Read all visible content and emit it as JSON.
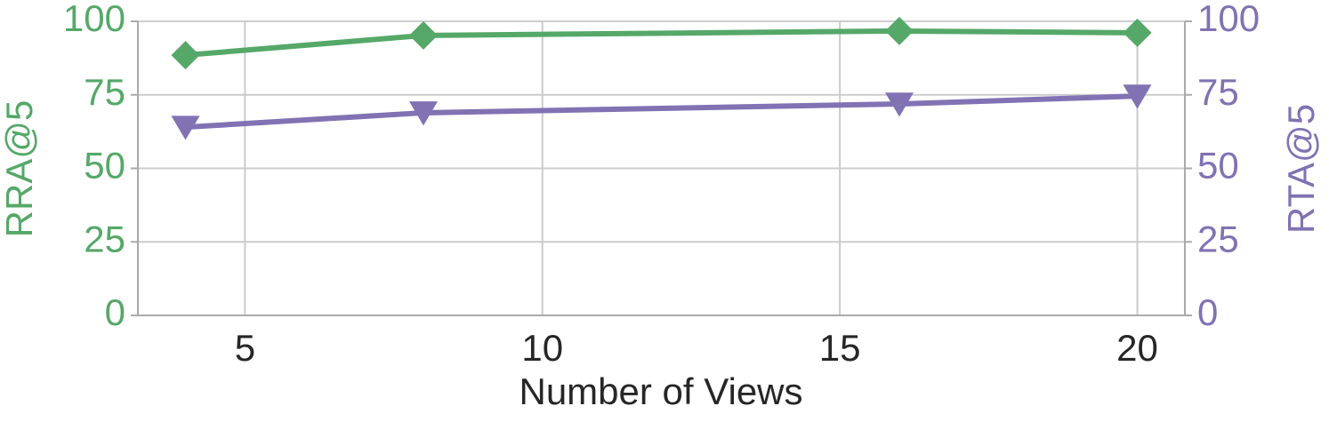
{
  "chart_data": {
    "type": "line",
    "x_label": "Number of Views",
    "y_label": "RRA@5",
    "y2_label": "RTA@5",
    "x": [
      4,
      8,
      16,
      20
    ],
    "series": [
      {
        "name": "RRA@5",
        "color": "#55a868",
        "values": [
          88.5,
          95.2,
          96.7,
          96.1
        ],
        "marker": "diamond"
      },
      {
        "name": "RTA@5",
        "color": "#8172b3",
        "values": [
          64.0,
          68.9,
          71.9,
          74.6
        ],
        "axis": "y2",
        "marker": "triangle-down"
      }
    ],
    "xlim": [
      3.2,
      20.8
    ],
    "xticks": [
      5,
      10,
      15,
      20
    ],
    "ylim": [
      0,
      100
    ],
    "yticks": [
      0,
      25,
      50,
      75,
      100
    ],
    "y2lim": [
      0,
      100
    ],
    "y2ticks": [
      0,
      25,
      50,
      75,
      100
    ],
    "grid": true
  }
}
